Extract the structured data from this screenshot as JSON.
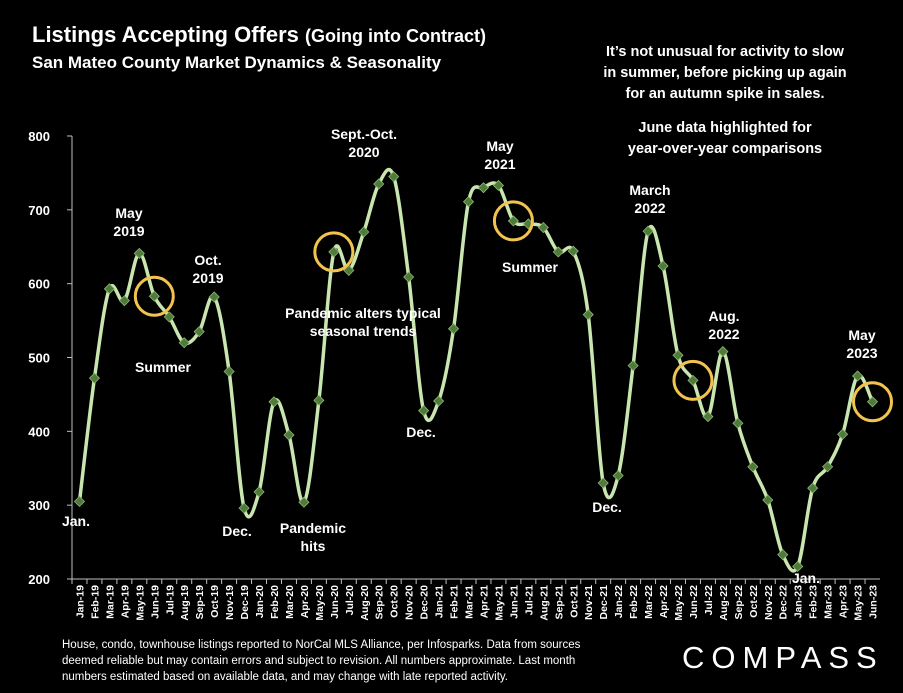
{
  "header": {
    "title": "Listings Accepting Offers",
    "title_paren": "(Going into Contract)",
    "subtitle": "San Mateo County Market Dynamics & Seasonality"
  },
  "notes": {
    "note1": [
      "It’s not unusual for activity to slow",
      "in summer, before picking up again",
      "for an autumn spike in sales."
    ],
    "note2": [
      "June data highlighted for",
      "year-over-year comparisons"
    ]
  },
  "footer": {
    "lines": [
      "House, condo, townhouse listings reported to NorCal MLS Alliance, per Infosparks. Data from sources",
      "deemed reliable but may contain errors and subject to revision. All numbers approximate. Last month",
      "numbers estimated based on available data, and may change with late reported activity."
    ]
  },
  "logo": "COMPASS",
  "colors": {
    "background": "#000000",
    "line": "#c9e6b0",
    "marker": "#4e7a3a",
    "highlight_circle": "#f2c34e",
    "text": "#ffffff"
  },
  "chart_data": {
    "type": "line",
    "title": "Listings Accepting Offers (Going into Contract)",
    "subtitle": "San Mateo County Market Dynamics & Seasonality",
    "ylim": [
      200,
      800
    ],
    "yticks": [
      200,
      300,
      400,
      500,
      600,
      700,
      800
    ],
    "grid": false,
    "categories": [
      "Jan-19",
      "Feb-19",
      "Mar-19",
      "Apr-19",
      "May-19",
      "Jun-19",
      "Jul-19",
      "Aug-19",
      "Sep-19",
      "Oct-19",
      "Nov-19",
      "Dec-19",
      "Jan-20",
      "Feb-20",
      "Mar-20",
      "Apr-20",
      "May-20",
      "Jun-20",
      "Jul-20",
      "Aug-20",
      "Sep-20",
      "Oct-20",
      "Nov-20",
      "Dec-20",
      "Jan-21",
      "Feb-21",
      "Mar-21",
      "Apr-21",
      "May-21",
      "Jun-21",
      "Jul-21",
      "Aug-21",
      "Sep-21",
      "Oct-21",
      "Nov-21",
      "Dec-21",
      "Jan-22",
      "Feb-22",
      "Mar-22",
      "Apr-22",
      "May-22",
      "Jun-22",
      "Jul-22",
      "Aug-22",
      "Sep-22",
      "Oct-22",
      "Nov-22",
      "Dec-22",
      "Jan-23",
      "Feb-23",
      "Mar-23",
      "Apr-23",
      "May-23",
      "Jun-23"
    ],
    "series": [
      {
        "values": [
          305,
          472,
          593,
          577,
          641,
          583,
          555,
          520,
          535,
          582,
          481,
          296,
          318,
          440,
          395,
          304,
          442,
          643,
          618,
          670,
          735,
          745,
          609,
          428,
          441,
          539,
          711,
          730,
          733,
          685,
          681,
          676,
          643,
          644,
          558,
          330,
          340,
          489,
          671,
          624,
          503,
          469,
          420,
          508,
          411,
          352,
          307,
          233,
          217,
          323,
          352,
          396,
          475,
          440
        ]
      }
    ],
    "highlighted_points": [
      "Jun-19",
      "Jun-20",
      "Jun-21",
      "Jun-22",
      "Jun-23"
    ],
    "annotations": [
      {
        "text": "Jan.",
        "point": "Jan-19"
      },
      {
        "text": "May\n2019",
        "point": "May-19"
      },
      {
        "text": "Summer",
        "point": "Jul-19"
      },
      {
        "text": "Oct.\n2019",
        "point": "Oct-19"
      },
      {
        "text": "Dec.",
        "point": "Dec-19"
      },
      {
        "text": "Pandemic\nhits",
        "point": "Apr-20"
      },
      {
        "text": "Pandemic alters typical\nseasonal trends",
        "point": "Aug-20"
      },
      {
        "text": "Sept.-Oct.\n2020",
        "point": "Sep-20"
      },
      {
        "text": "Dec.",
        "point": "Dec-20"
      },
      {
        "text": "May\n2021",
        "point": "May-21"
      },
      {
        "text": "Summer",
        "point": "Jul-21"
      },
      {
        "text": "Dec.",
        "point": "Dec-21"
      },
      {
        "text": "March\n2022",
        "point": "Mar-22"
      },
      {
        "text": "Aug.\n2022",
        "point": "Aug-22"
      },
      {
        "text": "Jan.",
        "point": "Jan-23"
      },
      {
        "text": "May\n2023",
        "point": "May-23"
      }
    ]
  }
}
